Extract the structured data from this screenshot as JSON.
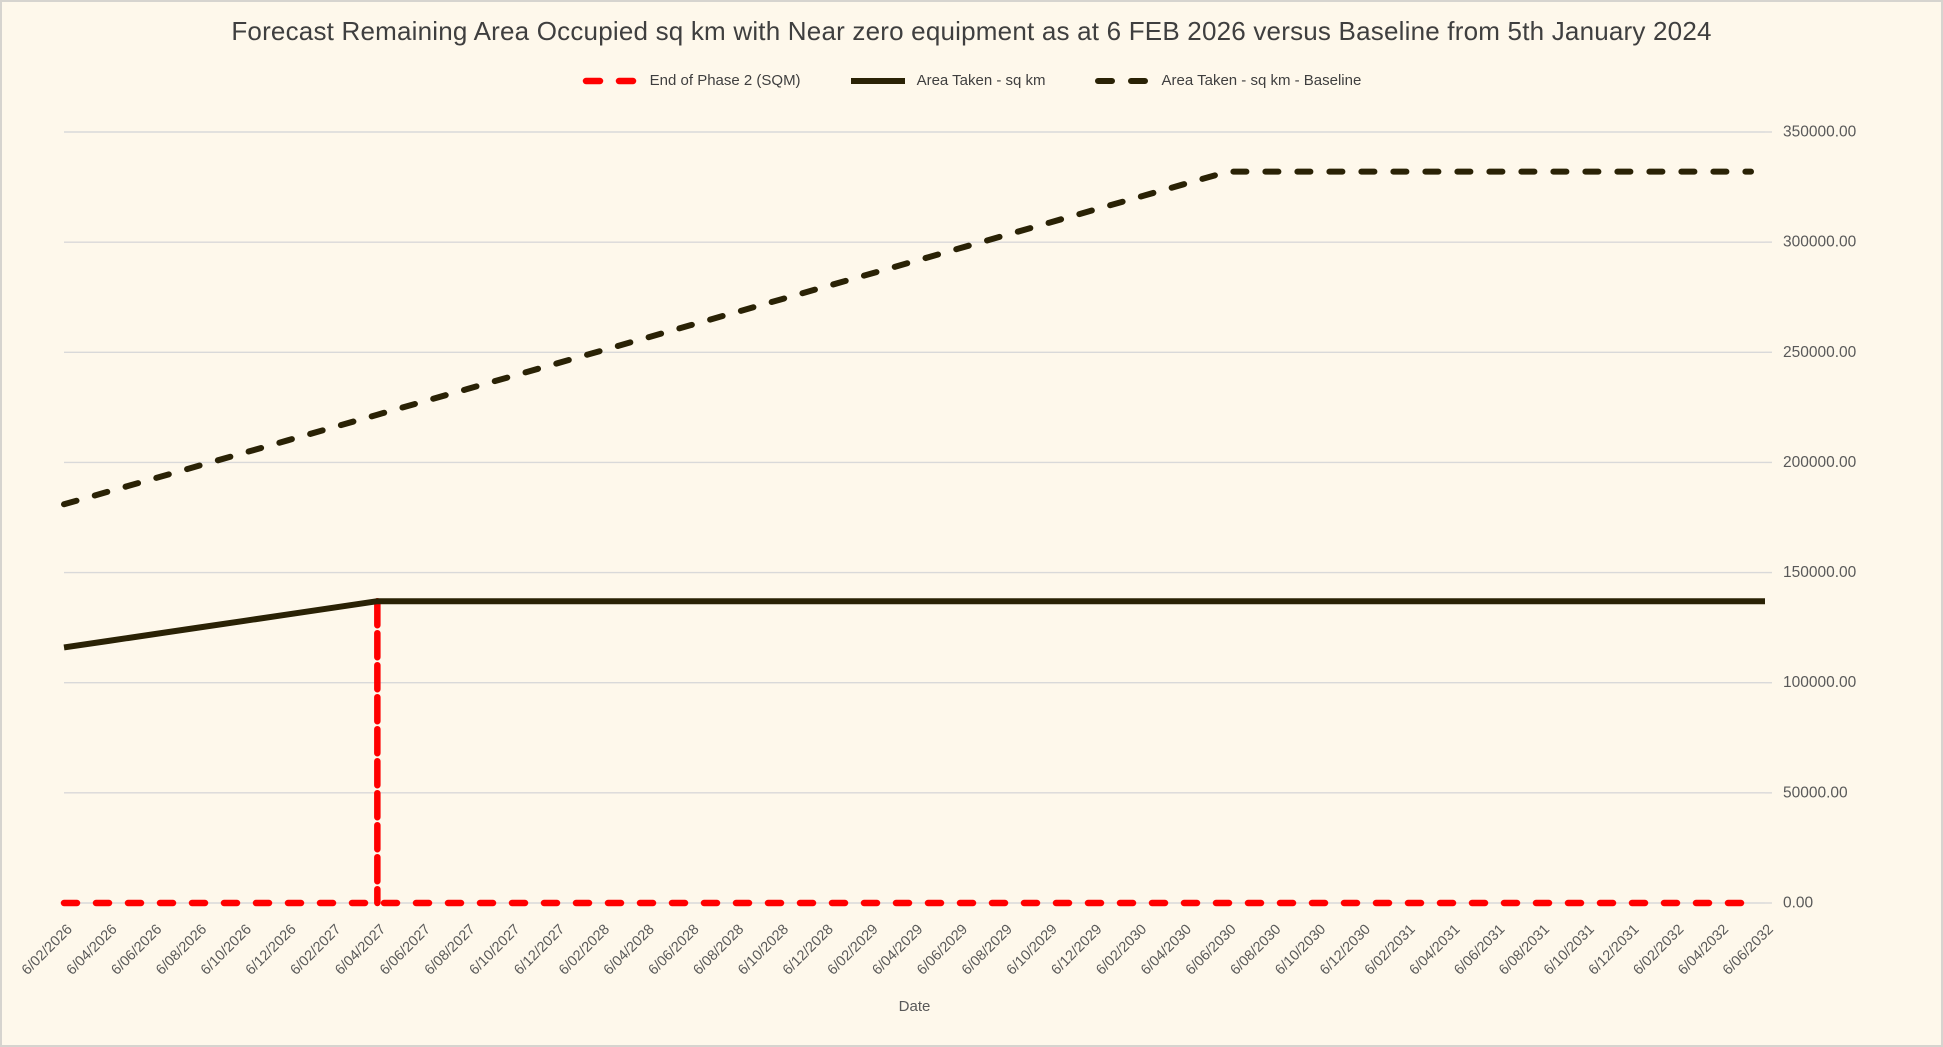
{
  "window": {
    "background_color": "#fef8eb",
    "border_color": "#d6d4cf"
  },
  "colors": {
    "gridline": "#d9d9d9",
    "title_text": "#3f3f3f",
    "axis_text": "#595959",
    "red_series": "#ff0000",
    "dark_series": "#2a2205"
  },
  "chart_data": {
    "type": "line",
    "title": "Forecast Remaining Area Occupied sq km with Near zero equipment as at 6 FEB 2026 versus Baseline from 5th January 2024",
    "xlabel": "Date",
    "ylabel": "",
    "ylim": [
      0,
      350000
    ],
    "ytick_step": 50000,
    "ytick_format": "fixed2",
    "grid": "horizontal",
    "legend_position": "top-center",
    "categories": [
      "6/02/2026",
      "6/04/2026",
      "6/06/2026",
      "6/08/2026",
      "6/10/2026",
      "6/12/2026",
      "6/02/2027",
      "6/04/2027",
      "6/06/2027",
      "6/08/2027",
      "6/10/2027",
      "6/12/2027",
      "6/02/2028",
      "6/04/2028",
      "6/06/2028",
      "6/08/2028",
      "6/10/2028",
      "6/12/2028",
      "6/02/2029",
      "6/04/2029",
      "6/06/2029",
      "6/08/2029",
      "6/10/2029",
      "6/12/2029",
      "6/02/2030",
      "6/04/2030",
      "6/06/2030",
      "6/08/2030",
      "6/10/2030",
      "6/12/2030",
      "6/02/2031",
      "6/04/2031",
      "6/06/2031",
      "6/08/2031",
      "6/10/2031",
      "6/12/2031",
      "6/02/2032",
      "6/04/2032",
      "6/06/2032"
    ],
    "series": [
      {
        "name": "End of Phase 2 (SQM)",
        "color": "#ff0000",
        "style": "dashed",
        "render": "vertical_spike",
        "base_value": 0,
        "spike_at": "6/04/2027",
        "spike_value": 137000,
        "values": [
          0,
          0,
          0,
          0,
          0,
          0,
          0,
          137000,
          0,
          0,
          0,
          0,
          0,
          0,
          0,
          0,
          0,
          0,
          0,
          0,
          0,
          0,
          0,
          0,
          0,
          0,
          0,
          0,
          0,
          0,
          0,
          0,
          0,
          0,
          0,
          0,
          0,
          0,
          0
        ]
      },
      {
        "name": "Area Taken - sq km",
        "color": "#2a2205",
        "style": "solid",
        "render": "line",
        "values": [
          116000,
          119000,
          122000,
          125000,
          128000,
          131000,
          134000,
          137000,
          137000,
          137000,
          137000,
          137000,
          137000,
          137000,
          137000,
          137000,
          137000,
          137000,
          137000,
          137000,
          137000,
          137000,
          137000,
          137000,
          137000,
          137000,
          137000,
          137000,
          137000,
          137000,
          137000,
          137000,
          137000,
          137000,
          137000,
          137000,
          137000,
          137000,
          137000
        ]
      },
      {
        "name": "Area Taken - sq km - Baseline",
        "color": "#2a2205",
        "style": "dashed",
        "render": "line",
        "values": [
          181000,
          186808,
          192615,
          198423,
          204231,
          210038,
          215846,
          221654,
          227462,
          233269,
          239077,
          244885,
          250692,
          256500,
          262308,
          268115,
          273923,
          279731,
          285538,
          291346,
          297154,
          302962,
          308769,
          314577,
          320385,
          326192,
          332000,
          332000,
          332000,
          332000,
          332000,
          332000,
          332000,
          332000,
          332000,
          332000,
          332000,
          332000,
          332000
        ]
      }
    ]
  }
}
